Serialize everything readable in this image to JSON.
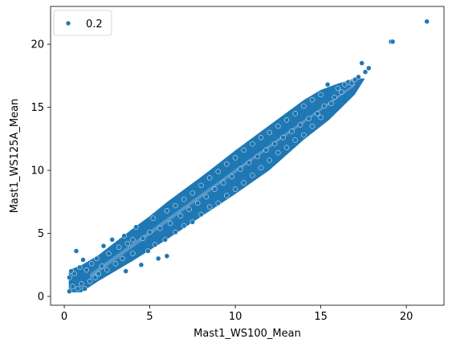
{
  "chart_data": {
    "type": "scatter",
    "title": "",
    "xlabel": "Mast1_WS100_Mean",
    "ylabel": "Mast1_WS125A_Mean",
    "xlim": [
      -0.8,
      22.2
    ],
    "ylim": [
      -0.7,
      23.0
    ],
    "xticks": [
      0,
      5,
      10,
      15,
      20
    ],
    "yticks": [
      0,
      5,
      10,
      15,
      20
    ],
    "grid": false,
    "legend": {
      "position": "top-left",
      "entries": [
        "0.2"
      ]
    },
    "series": [
      {
        "name": "0.2",
        "color": "#1f77b4",
        "points": [
          [
            0.3,
            0.4
          ],
          [
            0.3,
            1.5
          ],
          [
            0.4,
            2.0
          ],
          [
            0.5,
            0.8
          ],
          [
            0.6,
            1.8
          ],
          [
            0.7,
            3.6
          ],
          [
            0.8,
            0.6
          ],
          [
            0.9,
            2.3
          ],
          [
            1.0,
            1.0
          ],
          [
            1.1,
            2.9
          ],
          [
            1.2,
            0.6
          ],
          [
            1.3,
            2.1
          ],
          [
            1.5,
            1.2
          ],
          [
            1.6,
            2.6
          ],
          [
            1.8,
            1.5
          ],
          [
            1.9,
            3.0
          ],
          [
            2.0,
            1.8
          ],
          [
            2.2,
            2.4
          ],
          [
            2.3,
            4.0
          ],
          [
            2.5,
            2.1
          ],
          [
            2.6,
            3.4
          ],
          [
            2.8,
            4.5
          ],
          [
            3.0,
            2.6
          ],
          [
            3.2,
            3.9
          ],
          [
            3.4,
            3.0
          ],
          [
            3.5,
            4.8
          ],
          [
            3.6,
            2.0
          ],
          [
            3.7,
            4.2
          ],
          [
            4.0,
            3.4
          ],
          [
            4.0,
            4.5
          ],
          [
            4.2,
            5.5
          ],
          [
            4.5,
            2.5
          ],
          [
            4.6,
            4.6
          ],
          [
            4.9,
            3.6
          ],
          [
            5.0,
            5.1
          ],
          [
            5.2,
            6.2
          ],
          [
            5.3,
            4.1
          ],
          [
            5.5,
            3.0
          ],
          [
            5.6,
            5.4
          ],
          [
            5.9,
            4.5
          ],
          [
            6.0,
            6.8
          ],
          [
            6.0,
            3.2
          ],
          [
            6.2,
            5.8
          ],
          [
            6.5,
            5.1
          ],
          [
            6.5,
            7.2
          ],
          [
            6.8,
            6.4
          ],
          [
            7.0,
            5.6
          ],
          [
            7.0,
            7.7
          ],
          [
            7.3,
            6.9
          ],
          [
            7.5,
            5.9
          ],
          [
            7.5,
            8.2
          ],
          [
            7.8,
            7.4
          ],
          [
            8.0,
            6.5
          ],
          [
            8.0,
            8.8
          ],
          [
            8.3,
            7.9
          ],
          [
            8.5,
            7.1
          ],
          [
            8.5,
            9.4
          ],
          [
            8.8,
            8.5
          ],
          [
            9.0,
            7.4
          ],
          [
            9.0,
            9.9
          ],
          [
            9.3,
            9.0
          ],
          [
            9.5,
            8.0
          ],
          [
            9.5,
            10.5
          ],
          [
            9.8,
            9.5
          ],
          [
            10.0,
            8.5
          ],
          [
            10.0,
            11.0
          ],
          [
            10.3,
            10.1
          ],
          [
            10.5,
            9.0
          ],
          [
            10.5,
            11.6
          ],
          [
            10.8,
            10.6
          ],
          [
            11.0,
            9.6
          ],
          [
            11.0,
            12.1
          ],
          [
            11.3,
            11.1
          ],
          [
            11.5,
            10.2
          ],
          [
            11.5,
            12.6
          ],
          [
            11.8,
            11.6
          ],
          [
            12.0,
            10.8
          ],
          [
            12.0,
            13.0
          ],
          [
            12.3,
            12.1
          ],
          [
            12.5,
            11.4
          ],
          [
            12.5,
            13.5
          ],
          [
            12.8,
            12.6
          ],
          [
            13.0,
            11.8
          ],
          [
            13.0,
            14.0
          ],
          [
            13.3,
            13.1
          ],
          [
            13.5,
            12.4
          ],
          [
            13.5,
            14.5
          ],
          [
            13.8,
            13.6
          ],
          [
            14.0,
            12.8
          ],
          [
            14.0,
            15.1
          ],
          [
            14.3,
            14.1
          ],
          [
            14.5,
            13.5
          ],
          [
            14.5,
            15.6
          ],
          [
            14.8,
            14.5
          ],
          [
            15.0,
            14.2
          ],
          [
            15.0,
            16.0
          ],
          [
            15.2,
            15.1
          ],
          [
            15.4,
            16.8
          ],
          [
            15.6,
            15.3
          ],
          [
            15.8,
            15.8
          ],
          [
            16.0,
            16.5
          ],
          [
            16.2,
            16.2
          ],
          [
            16.4,
            16.8
          ],
          [
            16.6,
            17.0
          ],
          [
            16.8,
            16.9
          ],
          [
            17.0,
            17.2
          ],
          [
            17.2,
            17.4
          ],
          [
            17.4,
            18.5
          ],
          [
            17.6,
            17.8
          ],
          [
            17.8,
            18.1
          ],
          [
            19.1,
            20.2
          ],
          [
            19.2,
            20.2
          ],
          [
            21.2,
            21.8
          ]
        ]
      }
    ]
  }
}
